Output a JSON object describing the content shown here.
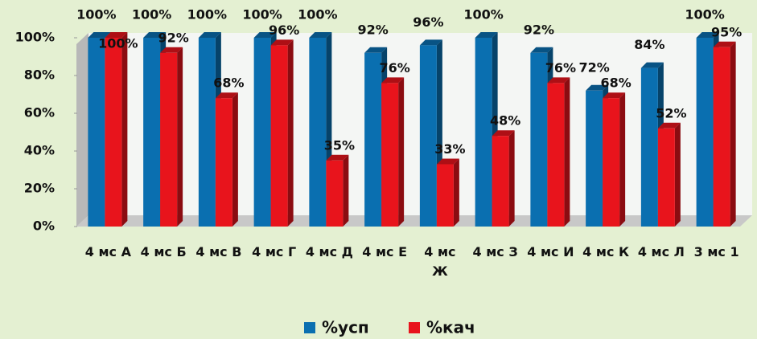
{
  "chart_data": {
    "type": "bar",
    "categories": [
      "4 мс А",
      "4 мс Б",
      "4 мс В",
      "4 мс Г",
      "4 мс Д",
      "4 мс Е",
      "4 мс Ж",
      "4 мс З",
      "4 мс И",
      "4 мс К",
      "4 мс Л",
      "3 мс 1"
    ],
    "series": [
      {
        "name": "%усп",
        "color": "#0a6fb0",
        "values": [
          100,
          100,
          100,
          100,
          100,
          92,
          96,
          100,
          92,
          72,
          84,
          100
        ],
        "value_labels": [
          "100%",
          "100%",
          "100%",
          "100%",
          "100%",
          "92%",
          "96%",
          "100%",
          "92%",
          "72%",
          "84%",
          "100%"
        ]
      },
      {
        "name": "%кач",
        "color": "#e8141c",
        "values": [
          100,
          92,
          68,
          96,
          35,
          76,
          33,
          48,
          76,
          68,
          52,
          95
        ],
        "value_labels": [
          "100%",
          "92%",
          "68%",
          "96%",
          "35%",
          "76%",
          "33%",
          "48%",
          "76%",
          "68%",
          "52%",
          "95%"
        ]
      }
    ],
    "ylim": [
      0,
      100
    ],
    "yticks": [
      {
        "value": 0,
        "label": "0%"
      },
      {
        "value": 20,
        "label": "20%"
      },
      {
        "value": 40,
        "label": "40%"
      },
      {
        "value": 60,
        "label": "60%"
      },
      {
        "value": 80,
        "label": "80%"
      },
      {
        "value": 100,
        "label": "100%"
      }
    ],
    "legend": "bottom"
  }
}
